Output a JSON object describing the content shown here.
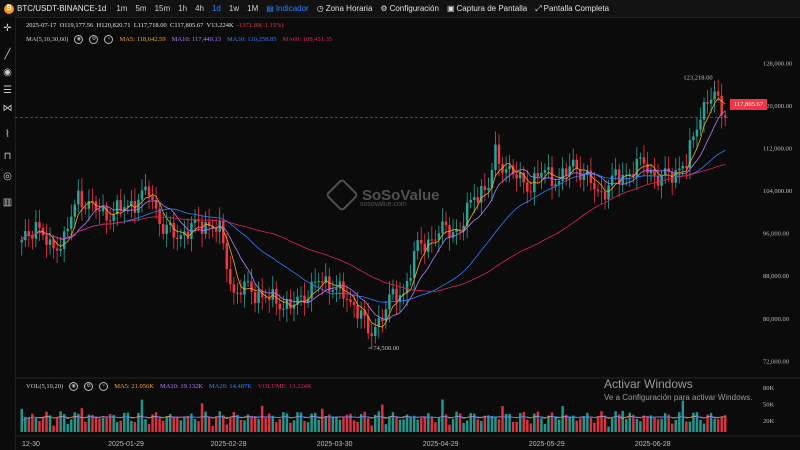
{
  "topbar": {
    "symbol": "BTC/USDT-BINANCE-1d",
    "coin_glyph": "₿",
    "timeframes": [
      "1m",
      "5m",
      "15m",
      "1h",
      "4h",
      "1d",
      "1w",
      "1M"
    ],
    "active_timeframe": "1d",
    "tools": {
      "indicator": "Indicador",
      "timezone": "Zona Horaria",
      "settings": "Configuración",
      "screenshot": "Captura de Pantalla",
      "fullscreen": "Pantalla Completa"
    }
  },
  "ohlc": {
    "date": "2025-07-17",
    "open": "O119,177.56",
    "high": "H120,820.71",
    "low": "L117,718.00",
    "close": "C117,805.67",
    "volume": "V13.224K",
    "change": "-1371.89(-1.15%)"
  },
  "ma_legend": {
    "label": "MA(5,10,30,60)",
    "ma5": "MA5: 118,642.59",
    "ma10": "MA10: 117,449.13",
    "ma30": "MA30: 110,258.85",
    "ma60": "MA60: 108,451.35"
  },
  "vol_legend": {
    "label": "VOL(5,10,20)",
    "ma5": "MA5: 21.056K",
    "ma10": "MA10: 19.132K",
    "ma20": "MA20: 14.487K",
    "volume": "VOLUME: 13.224K"
  },
  "price_axis": {
    "ticks": [
      "128,000.00",
      "120,000.00",
      "112,000.00",
      "104,000.00",
      "96,000.00",
      "88,000.00",
      "80,000.00",
      "72,000.00"
    ],
    "current_price": "117,805.67"
  },
  "volume_axis": {
    "ticks": [
      "80K",
      "50K",
      "20K"
    ]
  },
  "x_axis": {
    "ticks": [
      "12-30",
      "2025-01-29",
      "2025-02-28",
      "2025-03-30",
      "2025-04-29",
      "2025-05-29",
      "2025-06-28"
    ]
  },
  "annotations": {
    "high_label": "123,218.00",
    "low_label": "74,508.00"
  },
  "watermark": {
    "brand": "SoSoValue",
    "url": "sosovalue.com"
  },
  "windows_activation": {
    "title": "Activar Windows",
    "subtitle": "Ve a Configuración para activar Windows."
  },
  "colors": {
    "up": "#26a69a",
    "down": "#f23645",
    "ma5": "#f5a623",
    "ma10": "#b57bff",
    "ma30": "#2f80ff",
    "ma60": "#e0245e",
    "accent": "#2f80ff"
  },
  "sidebar_icons": [
    "crosshair-icon",
    "trend-line-icon",
    "circle-icon",
    "horizontal-lines-icon",
    "pattern-icon",
    "measure-icon",
    "lock-icon",
    "eye-icon",
    "trash-icon"
  ],
  "chart_data": {
    "type": "candlestick",
    "title": "BTC/USDT-BINANCE-1d",
    "ylim": [
      70000,
      132000
    ],
    "x_start": "2024-12-30",
    "x_end": "2025-07-17",
    "current_price": 117805.67,
    "high_marker": 123218.0,
    "low_marker": 74508.0,
    "price_path": [
      [
        0,
        94000
      ],
      [
        4,
        98000
      ],
      [
        8,
        93000
      ],
      [
        12,
        95000
      ],
      [
        16,
        103000
      ],
      [
        20,
        101000
      ],
      [
        24,
        99500
      ],
      [
        28,
        100500
      ],
      [
        32,
        102000
      ],
      [
        36,
        104000
      ],
      [
        40,
        97000
      ],
      [
        44,
        95500
      ],
      [
        48,
        97000
      ],
      [
        52,
        98000
      ],
      [
        56,
        96500
      ],
      [
        60,
        84500
      ],
      [
        64,
        86000
      ],
      [
        68,
        84000
      ],
      [
        72,
        83500
      ],
      [
        76,
        82000
      ],
      [
        80,
        84500
      ],
      [
        84,
        87000
      ],
      [
        88,
        86500
      ],
      [
        92,
        83500
      ],
      [
        96,
        81500
      ],
      [
        98,
        76500
      ],
      [
        100,
        78500
      ],
      [
        104,
        83500
      ],
      [
        108,
        85000
      ],
      [
        112,
        93500
      ],
      [
        116,
        95000
      ],
      [
        120,
        97000
      ],
      [
        124,
        96500
      ],
      [
        128,
        103500
      ],
      [
        132,
        104500
      ],
      [
        134,
        111000
      ],
      [
        136,
        109000
      ],
      [
        140,
        106500
      ],
      [
        144,
        105000
      ],
      [
        148,
        108000
      ],
      [
        152,
        105500
      ],
      [
        156,
        109500
      ],
      [
        160,
        106000
      ],
      [
        164,
        103500
      ],
      [
        168,
        106500
      ],
      [
        172,
        107500
      ],
      [
        176,
        109500
      ],
      [
        180,
        106000
      ],
      [
        184,
        107500
      ],
      [
        188,
        109000
      ],
      [
        192,
        119000
      ],
      [
        196,
        122000
      ],
      [
        199,
        117800
      ]
    ],
    "ma_periods": [
      5,
      10,
      30,
      60
    ],
    "volume_ma_periods": [
      5,
      10,
      20
    ]
  }
}
